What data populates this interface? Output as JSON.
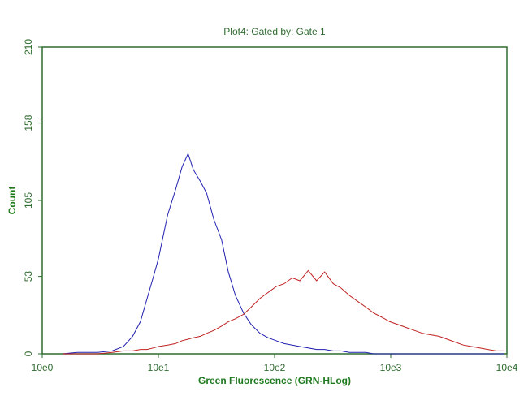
{
  "chart_data": {
    "type": "line",
    "title": "Plot4:  Gated by: Gate 1",
    "x_label": "Green Fluorescence (GRN-HLog)",
    "y_label": "Count",
    "xscale": "log",
    "xlim": [
      1,
      10000
    ],
    "xticks": [
      {
        "value": 1,
        "label": "10e0"
      },
      {
        "value": 10,
        "label": "10e1"
      },
      {
        "value": 100,
        "label": "10e2"
      },
      {
        "value": 1000,
        "label": "10e3"
      },
      {
        "value": 10000,
        "label": "10e4"
      }
    ],
    "ylim": [
      0,
      210
    ],
    "yticks": [
      0,
      53,
      105,
      158,
      210
    ],
    "x": [
      1.5,
      2,
      3,
      4,
      5,
      6,
      7,
      8,
      9,
      10,
      12,
      14,
      16,
      18,
      20,
      23,
      26,
      30,
      35,
      40,
      46,
      54,
      63,
      75,
      88,
      103,
      121,
      142,
      165,
      195,
      230,
      270,
      320,
      374,
      440,
      517,
      610,
      710,
      840,
      980,
      1160,
      1360,
      1600,
      1880,
      2210,
      2600,
      3060,
      3590,
      4220,
      4960,
      5830,
      6860,
      8070,
      9480
    ],
    "series": [
      {
        "color": "#2020b0",
        "values": [
          0,
          1,
          1,
          2,
          5,
          12,
          22,
          38,
          52,
          65,
          95,
          112,
          128,
          137,
          126,
          118,
          110,
          92,
          78,
          56,
          40,
          28,
          20,
          14,
          11,
          9,
          7,
          6,
          5,
          4,
          3,
          3,
          2,
          2,
          1,
          1,
          1,
          0,
          0,
          0,
          0,
          0,
          0,
          0,
          0,
          0,
          0,
          0,
          0,
          0,
          0,
          0,
          0,
          0
        ]
      },
      {
        "color": "#c02020",
        "values": [
          0,
          0,
          0,
          1,
          2,
          2,
          3,
          3,
          4,
          5,
          6,
          7,
          9,
          10,
          11,
          12,
          14,
          16,
          19,
          22,
          24,
          27,
          32,
          38,
          42,
          46,
          48,
          52,
          50,
          57,
          50,
          56,
          48,
          45,
          40,
          36,
          32,
          28,
          25,
          22,
          20,
          18,
          16,
          14,
          13,
          12,
          10,
          8,
          6,
          5,
          4,
          3,
          2,
          2
        ]
      }
    ]
  }
}
